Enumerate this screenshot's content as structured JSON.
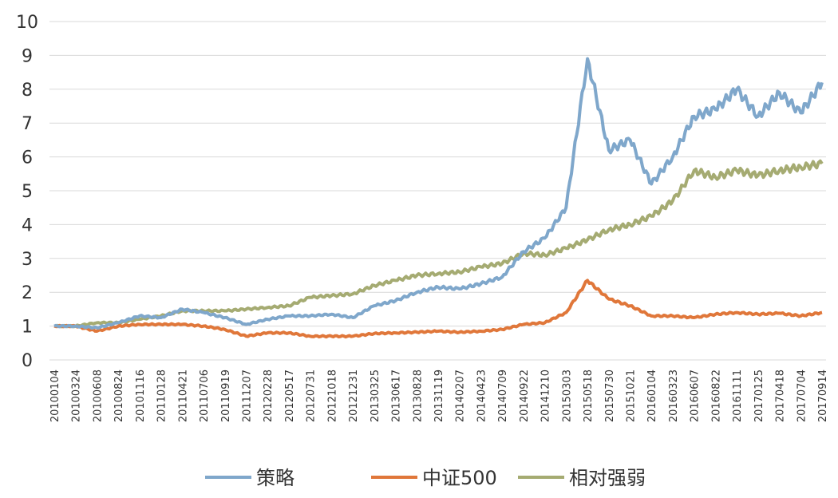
{
  "chart_data": {
    "type": "line",
    "ylim": [
      0,
      10
    ],
    "yticks": [
      "0",
      "1",
      "2",
      "3",
      "4",
      "5",
      "6",
      "7",
      "8",
      "9",
      "10"
    ],
    "grid": true,
    "legend_position": "bottom",
    "categories": [
      "20100104",
      "20100324",
      "20100608",
      "20100824",
      "20101116",
      "20110128",
      "20110421",
      "20110706",
      "20110919",
      "20111207",
      "20120228",
      "20120517",
      "20120731",
      "20121018",
      "20121231",
      "20130325",
      "20130617",
      "20130828",
      "20131119",
      "20140207",
      "20140423",
      "20140709",
      "20140922",
      "20141210",
      "20150303",
      "20150518",
      "20150730",
      "20151021",
      "20160104",
      "20160323",
      "20160607",
      "20160822",
      "20161111",
      "20170125",
      "20170418",
      "20170704",
      "20170914"
    ],
    "series": [
      {
        "name": "策略",
        "color": "#7fa7cb",
        "values": [
          1.0,
          1.0,
          0.95,
          1.1,
          1.3,
          1.25,
          1.5,
          1.4,
          1.25,
          1.05,
          1.2,
          1.3,
          1.3,
          1.35,
          1.25,
          1.6,
          1.75,
          2.0,
          2.15,
          2.1,
          2.25,
          2.45,
          3.2,
          3.6,
          4.5,
          8.9,
          6.2,
          6.5,
          5.2,
          6.0,
          7.2,
          7.4,
          8.0,
          7.2,
          7.9,
          7.3,
          8.2
        ]
      },
      {
        "name": "中证500",
        "color": "#e0773a",
        "values": [
          1.0,
          1.0,
          0.85,
          1.0,
          1.05,
          1.05,
          1.05,
          1.0,
          0.9,
          0.7,
          0.8,
          0.8,
          0.7,
          0.7,
          0.7,
          0.78,
          0.8,
          0.82,
          0.85,
          0.82,
          0.85,
          0.9,
          1.05,
          1.1,
          1.4,
          2.35,
          1.8,
          1.6,
          1.3,
          1.3,
          1.25,
          1.35,
          1.4,
          1.35,
          1.38,
          1.3,
          1.4
        ]
      },
      {
        "name": "相对强弱",
        "color": "#a5ab72",
        "values": [
          1.0,
          1.0,
          1.1,
          1.1,
          1.2,
          1.3,
          1.45,
          1.45,
          1.45,
          1.5,
          1.55,
          1.6,
          1.85,
          1.9,
          1.95,
          2.2,
          2.35,
          2.5,
          2.55,
          2.6,
          2.75,
          2.85,
          3.15,
          3.1,
          3.3,
          3.55,
          3.85,
          4.0,
          4.25,
          4.7,
          5.6,
          5.4,
          5.6,
          5.45,
          5.6,
          5.7,
          5.8
        ]
      }
    ]
  }
}
